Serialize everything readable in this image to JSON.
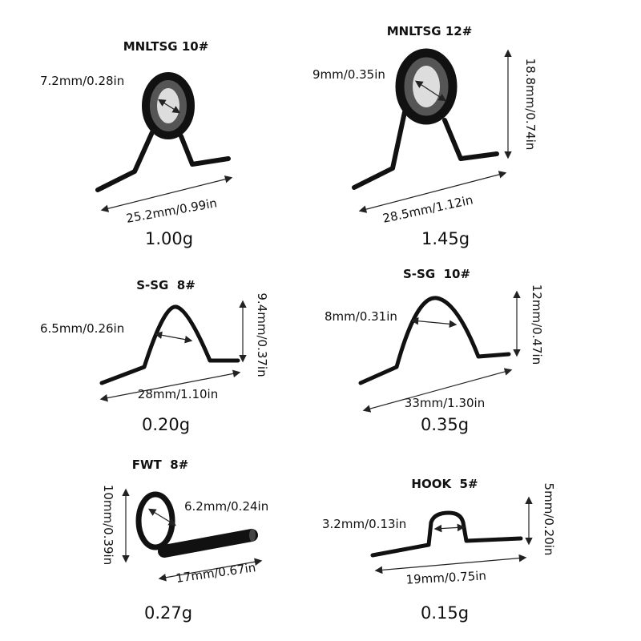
{
  "items": [
    {
      "name": "MNLTSG 10#",
      "inner": "7.2mm/0.28in",
      "length": "25.2mm/0.99in",
      "weight": "1.00g"
    },
    {
      "name": "MNLTSG 12#",
      "inner": "9mm/0.35in",
      "height": "18.8mm/0.74in",
      "length": "28.5mm/1.12in",
      "weight": "1.45g"
    },
    {
      "name": "S-SG  8#",
      "inner": "6.5mm/0.26in",
      "height": "9.4mm/0.37in",
      "length": "28mm/1.10in",
      "weight": "0.20g"
    },
    {
      "name": "S-SG  10#",
      "inner": "8mm/0.31in",
      "height": "12mm/0.47in",
      "length": "33mm/1.30in",
      "weight": "0.35g"
    },
    {
      "name": "FWT  8#",
      "inner": "6.2mm/0.24in",
      "height": "10mm/0.39in",
      "length": "17mm/0.67in",
      "weight": "0.27g"
    },
    {
      "name": "HOOK  5#",
      "inner": "3.2mm/0.13in",
      "height": "5mm/0.20in",
      "length": "19mm/0.75in",
      "weight": "0.15g"
    }
  ]
}
